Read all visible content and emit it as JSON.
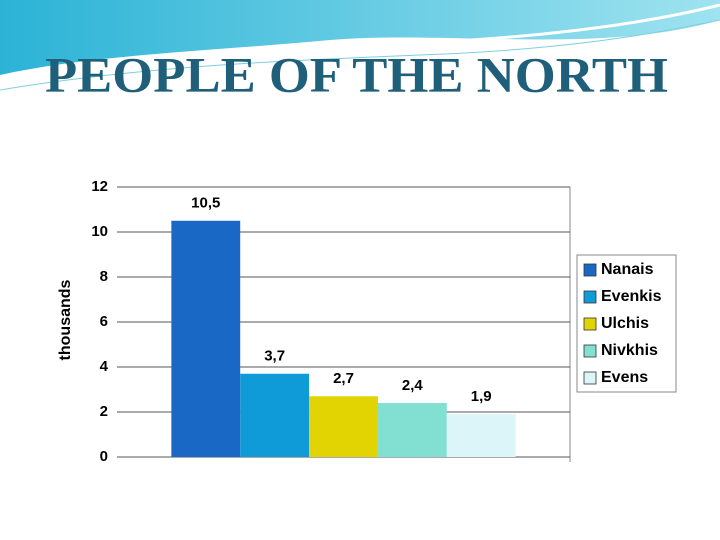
{
  "chart_data": {
    "type": "bar",
    "title": "PEOPLE OF THE NORTH",
    "y_label": "thousands",
    "categories": [
      null
    ],
    "series": [
      {
        "name": "Nanais",
        "color": "#1a68c6",
        "values": [
          10.5
        ],
        "value_labels": [
          "10,5"
        ]
      },
      {
        "name": "Evenkis",
        "color": "#0f9ad8",
        "values": [
          3.7
        ],
        "value_labels": [
          "3,7"
        ]
      },
      {
        "name": "Ulchis",
        "color": "#e2d402",
        "values": [
          2.7
        ],
        "value_labels": [
          "2,7"
        ]
      },
      {
        "name": "Nivkhis",
        "color": "#82e0d2",
        "values": [
          2.4
        ],
        "value_labels": [
          "2,4"
        ]
      },
      {
        "name": "Evens",
        "color": "#dcf5f9",
        "values": [
          1.9
        ],
        "value_labels": [
          "1,9"
        ]
      }
    ],
    "ylim": [
      0,
      12
    ],
    "yticks": [
      0,
      2,
      4,
      6,
      8,
      10,
      12
    ],
    "grid": true,
    "legend": "right"
  }
}
